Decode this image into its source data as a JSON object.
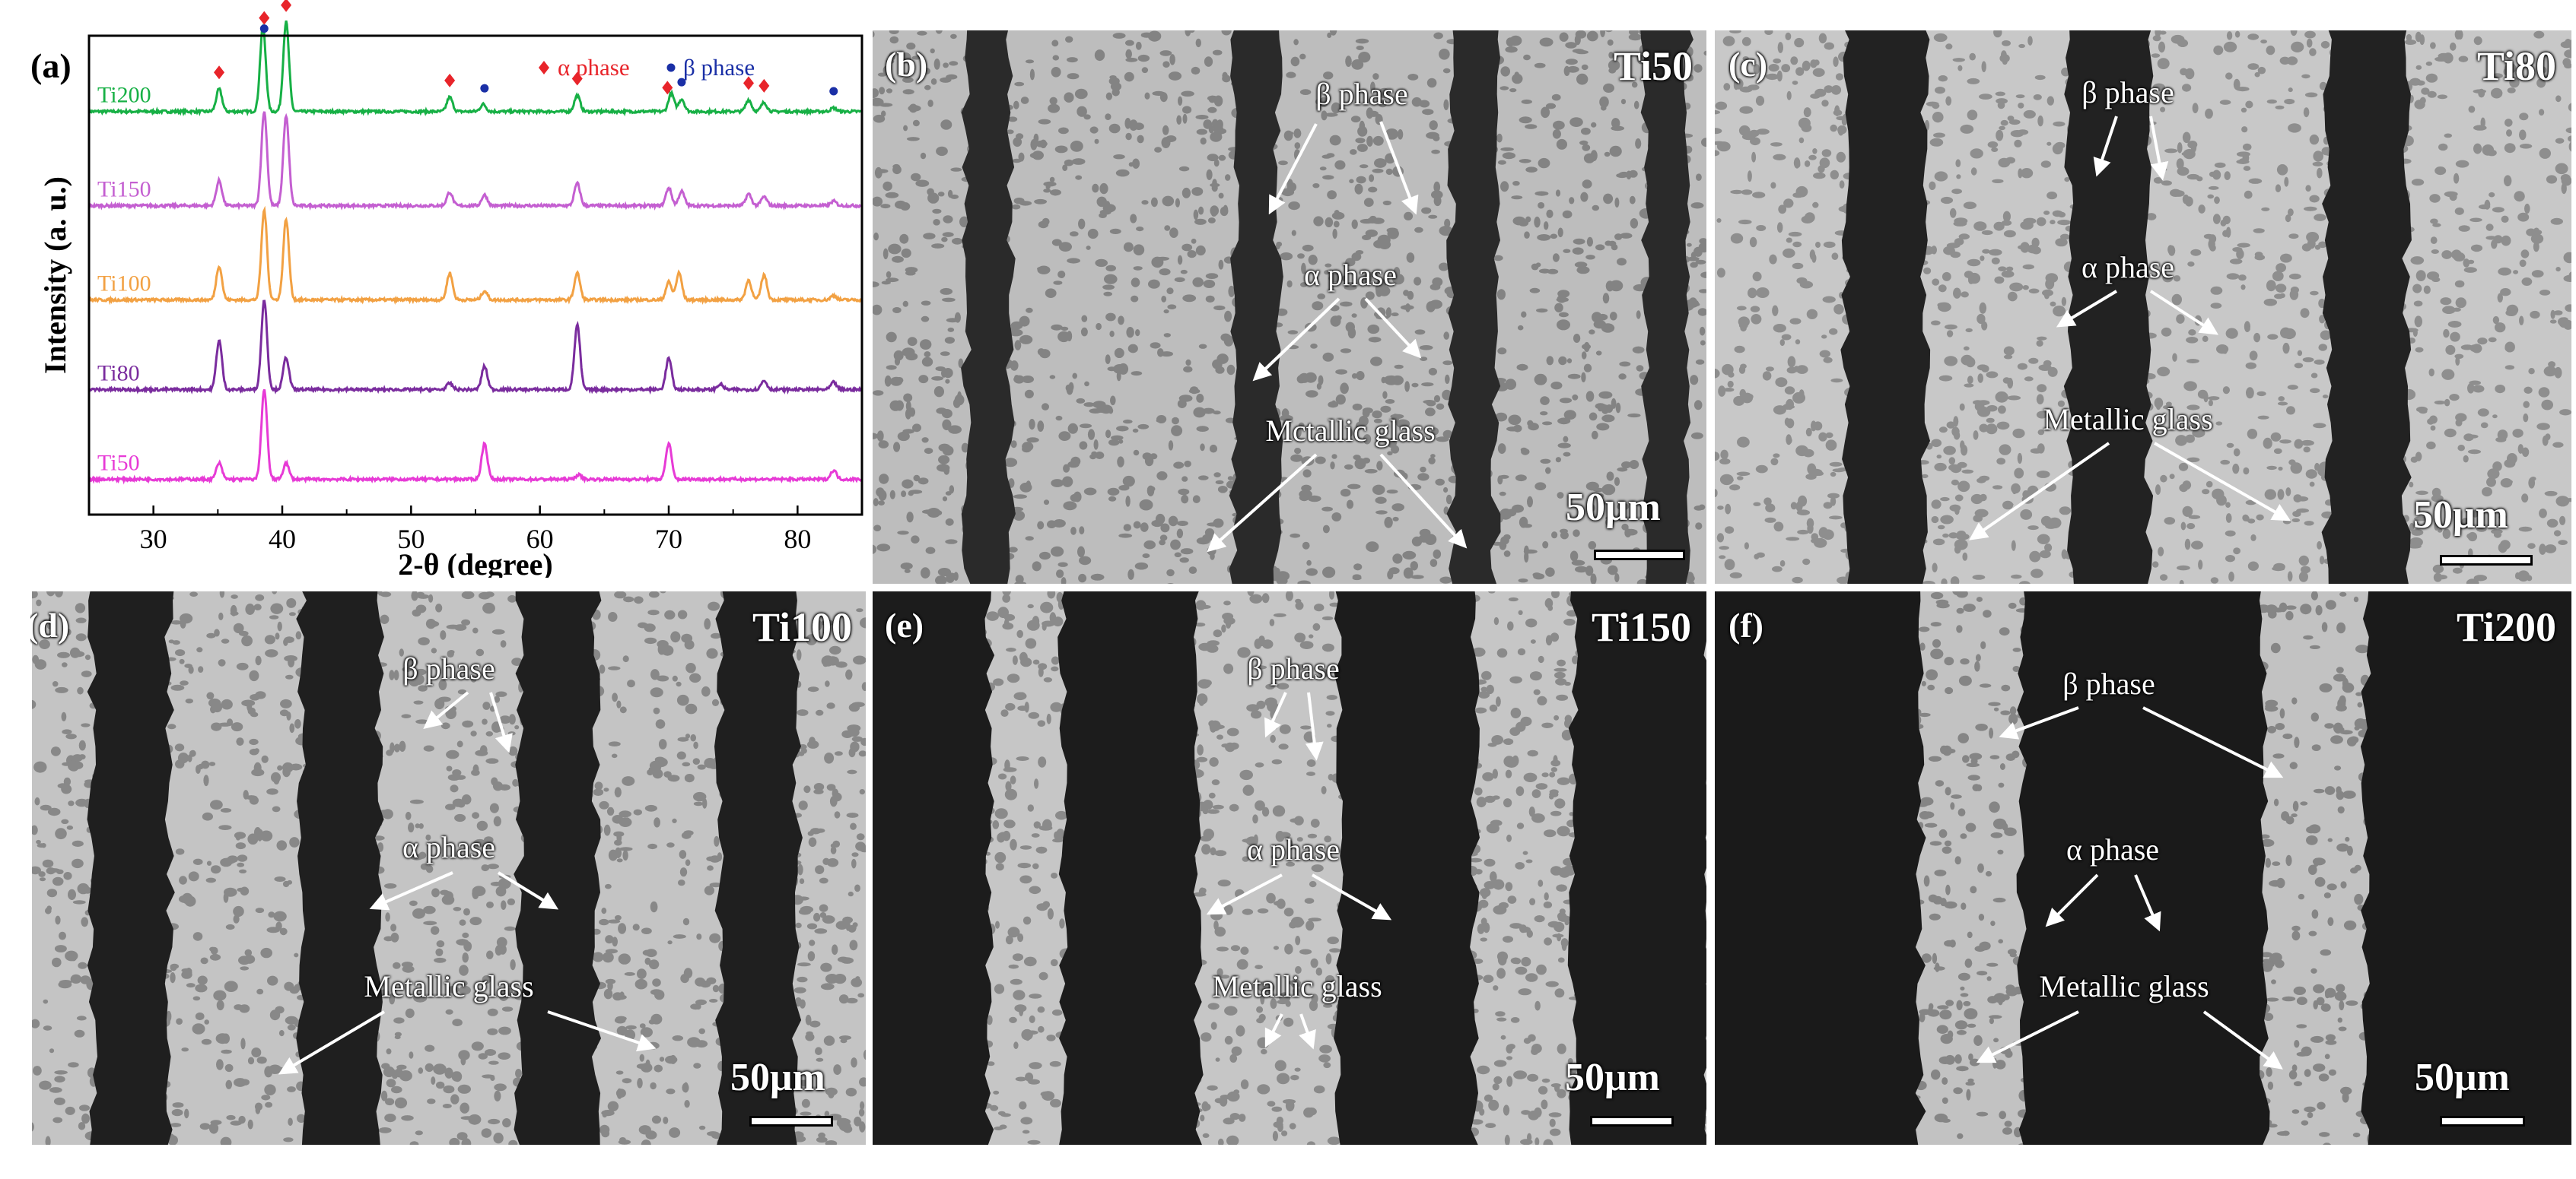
{
  "chart_data": {
    "type": "line",
    "panel_label": "(a)",
    "xlabel": "2-θ (degree)",
    "ylabel": "Intensity (a. u.)",
    "xlim": [
      25,
      85
    ],
    "xticks": [
      "30",
      "40",
      "50",
      "60",
      "70",
      "80"
    ],
    "legend": [
      {
        "name": "α phase",
        "marker": "diamond",
        "color": "#e8242a"
      },
      {
        "name": "β phase",
        "marker": "dot",
        "color": "#1a2fa6"
      }
    ],
    "series": [
      {
        "name": "Ti200",
        "color": "#17b045",
        "baseline": 0.87,
        "peaks": [
          [
            35.1,
            0.25
          ],
          [
            38.5,
            0.95
          ],
          [
            40.3,
            1.0
          ],
          [
            53.0,
            0.16
          ],
          [
            55.6,
            0.08
          ],
          [
            62.9,
            0.18
          ],
          [
            70.2,
            0.2
          ],
          [
            71.0,
            0.14
          ],
          [
            76.2,
            0.13
          ],
          [
            77.4,
            0.1
          ],
          [
            82.8,
            0.04
          ]
        ]
      },
      {
        "name": "Ti150",
        "color": "#c45fd1",
        "baseline": 0.66,
        "peaks": [
          [
            35.1,
            0.28
          ],
          [
            38.6,
            1.05
          ],
          [
            40.3,
            1.0
          ],
          [
            53.0,
            0.15
          ],
          [
            55.7,
            0.12
          ],
          [
            62.9,
            0.25
          ],
          [
            70.0,
            0.2
          ],
          [
            71.0,
            0.16
          ],
          [
            76.2,
            0.13
          ],
          [
            77.4,
            0.1
          ],
          [
            82.8,
            0.05
          ]
        ]
      },
      {
        "name": "Ti100",
        "color": "#f2a143",
        "baseline": 0.45,
        "peaks": [
          [
            35.1,
            0.38
          ],
          [
            38.6,
            1.0
          ],
          [
            40.3,
            0.9
          ],
          [
            53.0,
            0.3
          ],
          [
            55.7,
            0.1
          ],
          [
            62.9,
            0.3
          ],
          [
            70.0,
            0.2
          ],
          [
            70.8,
            0.3
          ],
          [
            76.2,
            0.22
          ],
          [
            77.4,
            0.28
          ],
          [
            82.8,
            0.05
          ]
        ]
      },
      {
        "name": "Ti80",
        "color": "#7a2c9e",
        "baseline": 0.25,
        "peaks": [
          [
            35.1,
            0.55
          ],
          [
            38.6,
            1.0
          ],
          [
            40.3,
            0.36
          ],
          [
            53.0,
            0.07
          ],
          [
            55.7,
            0.26
          ],
          [
            62.9,
            0.72
          ],
          [
            70.0,
            0.35
          ],
          [
            74.0,
            0.06
          ],
          [
            77.4,
            0.1
          ],
          [
            82.8,
            0.08
          ]
        ]
      },
      {
        "name": "Ti50",
        "color": "#e73ad6",
        "baseline": 0.05,
        "peaks": [
          [
            35.1,
            0.18
          ],
          [
            38.6,
            1.0
          ],
          [
            40.3,
            0.18
          ],
          [
            55.7,
            0.4
          ],
          [
            63.0,
            0.05
          ],
          [
            70.0,
            0.4
          ],
          [
            82.8,
            0.1
          ]
        ]
      }
    ],
    "alpha_markers": [
      35.1,
      38.6,
      40.3,
      53.0,
      62.9,
      69.9,
      76.2,
      77.4
    ],
    "beta_markers": [
      38.6,
      55.7,
      71.0,
      82.8
    ]
  },
  "panels": [
    {
      "id": "b",
      "label": "(b)",
      "tag": "Ti50",
      "beta": "β phase",
      "alpha": "α phase",
      "glass": "Mctallic glass",
      "scale": "50μm",
      "stripes": [
        0.14,
        0.46,
        0.72,
        0.95
      ],
      "stripe_color": "#2a2a2a",
      "light": "#bdbdbd",
      "grain_color": "#7a7a7a",
      "stripe_w": 0.04
    },
    {
      "id": "c",
      "label": "(c)",
      "tag": "Ti80",
      "beta": "β phase",
      "alpha": "α phase",
      "glass": "Metallic glass",
      "scale": "50μm",
      "stripes": [
        0.2,
        0.46,
        0.76
      ],
      "stripe_color": "#222222",
      "light": "#c8c8c8",
      "grain_color": "#858585",
      "stripe_w": 0.08
    },
    {
      "id": "d",
      "label": "(d)",
      "tag": "Ti100",
      "beta": "β phase",
      "alpha": "α phase",
      "glass": "Metallic glass",
      "scale": "50μm",
      "stripes": [
        0.12,
        0.37,
        0.63,
        0.87
      ],
      "stripe_color": "#1f1f1f",
      "light": "#c4c4c4",
      "grain_color": "#7e7e7e",
      "stripe_w": 0.08
    },
    {
      "id": "e",
      "label": "(e)",
      "tag": "Ti150",
      "beta": "β phase",
      "alpha": "α phase",
      "glass": "Metallic glass",
      "scale": "50μm",
      "stripes": [
        0.06,
        0.31,
        0.64,
        0.92
      ],
      "stripe_color": "#1c1c1c",
      "light": "#c6c6c6",
      "grain_color": "#808080",
      "stripe_w": 0.15
    },
    {
      "id": "f",
      "label": "(f)",
      "tag": "Ti200",
      "beta": "β phase",
      "alpha": "α phase",
      "glass": "Metallic glass",
      "scale": "50μm",
      "stripes": [
        0.1,
        0.5,
        0.9
      ],
      "stripe_color": "#1a1a1a",
      "light": "#c2c2c2",
      "grain_color": "#7b7b7b",
      "stripe_w": 0.27
    }
  ]
}
